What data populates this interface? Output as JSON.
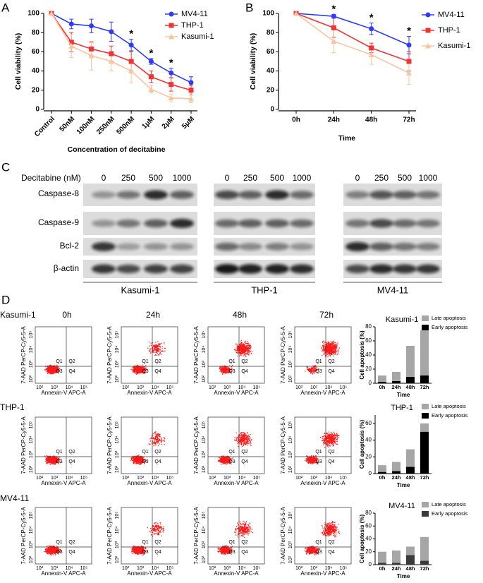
{
  "panel_labels": [
    "A",
    "B",
    "C",
    "D"
  ],
  "chart_data": [
    {
      "type": "line",
      "ylabel": "Cell viability (%)",
      "xlabel": "Concentration of decitabine",
      "categories": [
        "Control",
        "50nM",
        "100nM",
        "250nM",
        "500nM",
        "1μM",
        "2μM",
        "5μM"
      ],
      "ylim": [
        0,
        100
      ],
      "yticks": [
        0,
        20,
        40,
        60,
        80,
        100
      ],
      "legend": "upper right",
      "series": [
        {
          "name": "MV4-11",
          "color": "#2f3bf5",
          "marker": "circle",
          "values": [
            100,
            89,
            87,
            81,
            67,
            50,
            38,
            28
          ],
          "errors": [
            0,
            5,
            7,
            10,
            6,
            3,
            5,
            6
          ]
        },
        {
          "name": "THP-1",
          "color": "#ef3434",
          "marker": "square",
          "values": [
            100,
            70,
            63,
            58,
            50,
            34,
            26,
            20
          ],
          "errors": [
            0,
            10,
            7,
            8,
            10,
            6,
            7,
            5
          ]
        },
        {
          "name": "Kasumi-1",
          "color": "#f7c59f",
          "marker": "triangle",
          "values": [
            100,
            66,
            56,
            50,
            40,
            21,
            12,
            11
          ],
          "errors": [
            0,
            12,
            15,
            10,
            12,
            4,
            4,
            4
          ]
        }
      ],
      "annotations": [
        {
          "x": "500nM",
          "text": "*"
        },
        {
          "x": "1μM",
          "text": "*"
        },
        {
          "x": "2μM",
          "text": "*"
        }
      ]
    },
    {
      "type": "line",
      "ylabel": "Cell viability (%)",
      "xlabel": "Time",
      "categories": [
        "0h",
        "24h",
        "48h",
        "72h"
      ],
      "ylim": [
        0,
        100
      ],
      "yticks": [
        0,
        20,
        40,
        60,
        80,
        100
      ],
      "legend": "upper right",
      "series": [
        {
          "name": "MV4-11",
          "color": "#2f3bf5",
          "marker": "circle",
          "values": [
            100,
            97,
            84,
            67
          ],
          "errors": [
            0,
            2,
            6,
            9
          ]
        },
        {
          "name": "THP-1",
          "color": "#ef3434",
          "marker": "square",
          "values": [
            100,
            85,
            64,
            50
          ],
          "errors": [
            0,
            10,
            5,
            10
          ]
        },
        {
          "name": "Kasumi-1",
          "color": "#f7c59f",
          "marker": "triangle",
          "values": [
            100,
            71,
            57,
            38
          ],
          "errors": [
            0,
            12,
            10,
            12
          ]
        }
      ],
      "annotations": [
        {
          "x": "24h",
          "text": "*"
        },
        {
          "x": "48h",
          "text": "*"
        },
        {
          "x": "72h",
          "text": "*"
        }
      ]
    },
    {
      "type": "stacked_bar",
      "title": "Kasumi-1",
      "ylabel": "Cell apoptosis (%)",
      "xlabel": "Time",
      "categories": [
        "0h",
        "24h",
        "48h",
        "72h"
      ],
      "ylim": [
        0,
        80
      ],
      "yticks": [
        0,
        20,
        40,
        60,
        80
      ],
      "legend": "upper right",
      "series": [
        {
          "name": "Early apoptosis",
          "color": "#000000",
          "values": [
            2,
            3,
            9,
            11
          ]
        },
        {
          "name": "Late apoptosis",
          "color": "#a6a6a6",
          "values": [
            9,
            13,
            44,
            64
          ]
        }
      ]
    },
    {
      "type": "stacked_bar",
      "title": "THP-1",
      "ylabel": "Cell apoptosis (%)",
      "xlabel": "Time",
      "categories": [
        "0h",
        "24h",
        "48h",
        "72h"
      ],
      "ylim": [
        0,
        70
      ],
      "yticks": [
        0,
        20,
        40,
        60
      ],
      "legend": "upper right",
      "series": [
        {
          "name": "Early apoptosis",
          "color": "#000000",
          "values": [
            2,
            3,
            8,
            50
          ]
        },
        {
          "name": "Late apoptosis",
          "color": "#a6a6a6",
          "values": [
            8,
            11,
            21,
            10
          ]
        }
      ]
    },
    {
      "type": "stacked_bar",
      "title": "MV4-11",
      "ylabel": "Cell apoptosis (%)",
      "xlabel": "Time",
      "categories": [
        "0h",
        "24h",
        "48h",
        "72h"
      ],
      "ylim": [
        0,
        80
      ],
      "yticks": [
        0,
        20,
        40,
        60,
        80
      ],
      "legend": "upper right",
      "series": [
        {
          "name": "Early apoptosis",
          "color": "#3a3a3a",
          "values": [
            3,
            3,
            15,
            6
          ]
        },
        {
          "name": "Late apoptosis",
          "color": "#a6a6a6",
          "values": [
            17,
            19,
            13,
            37
          ]
        }
      ]
    }
  ],
  "western_blot": {
    "treatment_label": "Decitabine (nM)",
    "proteins": [
      "Caspase-8",
      "Caspase-9",
      "Bcl-2",
      "β-actin"
    ],
    "groups": [
      {
        "name": "Kasumi-1",
        "doses": [
          "0",
          "250",
          "500",
          "1000"
        ]
      },
      {
        "name": "THP-1",
        "doses": [
          "0",
          "250",
          "500",
          "1000"
        ]
      },
      {
        "name": "MV4-11",
        "doses": [
          "0",
          "250",
          "500",
          "1000"
        ]
      }
    ]
  },
  "flow_cytometry": {
    "cell_lines": [
      "Kasumi-1",
      "THP-1",
      "MV4-11"
    ],
    "timepoints": [
      "0h",
      "24h",
      "48h",
      "72h"
    ],
    "y_axis_label": "7-AAD PerCP-Cy5-5-A",
    "x_axis_label": "Annexin-V APC-A",
    "ticks": [
      "10²",
      "10³",
      "10⁴",
      "10⁵"
    ],
    "quadrants": [
      "Q1",
      "Q2",
      "Q3",
      "Q4"
    ]
  }
}
